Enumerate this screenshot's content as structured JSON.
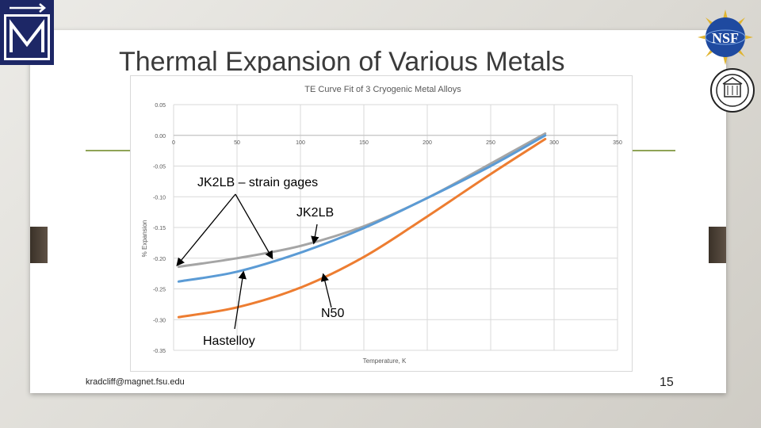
{
  "slide": {
    "title": "Thermal Expansion of Various Metals",
    "email": "kradcliff@magnet.fsu.edu",
    "page_number": "15"
  },
  "logos": {
    "nsf_text": "NSF"
  },
  "annotations": {
    "strain_gages": "JK2LB – strain gages",
    "jk2lb": "JK2LB",
    "n50": "N50",
    "hastelloy": "Hastelloy"
  },
  "chart_data": {
    "type": "line",
    "title": "TE Curve Fit of 3 Cryogenic Metal Alloys",
    "xlabel": "Temperature, K",
    "ylabel": "% Expansion",
    "xlim": [
      0,
      350
    ],
    "ylim": [
      -0.35,
      0.05
    ],
    "x_ticks": [
      "0",
      "50",
      "100",
      "150",
      "200",
      "250",
      "300",
      "350"
    ],
    "y_ticks": [
      "0.05",
      "0.00",
      "-0.05",
      "-0.10",
      "-0.15",
      "-0.20",
      "-0.25",
      "-0.30",
      "-0.35"
    ],
    "grid": true,
    "series": [
      {
        "color": "#a5a5a5",
        "x": [
          4,
          50,
          100,
          150,
          200,
          250,
          293
        ],
        "y": [
          -0.214,
          -0.2,
          -0.18,
          -0.148,
          -0.102,
          -0.046,
          0.003
        ]
      },
      {
        "color": "#5b9bd5",
        "x": [
          4,
          50,
          100,
          150,
          200,
          250,
          293
        ],
        "y": [
          -0.238,
          -0.222,
          -0.191,
          -0.151,
          -0.102,
          -0.05,
          0.0
        ]
      },
      {
        "color": "#ed7d31",
        "x": [
          4,
          50,
          100,
          150,
          200,
          250,
          293
        ],
        "y": [
          -0.296,
          -0.28,
          -0.248,
          -0.198,
          -0.132,
          -0.063,
          -0.006
        ]
      }
    ]
  }
}
